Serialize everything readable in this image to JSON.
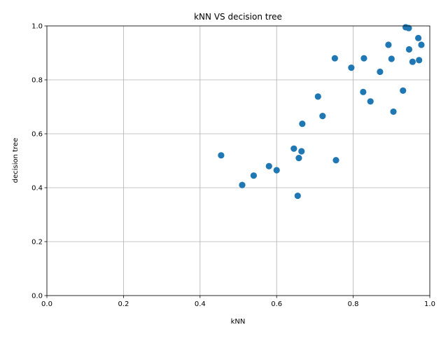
{
  "chart_data": {
    "type": "scatter",
    "title": "kNN VS decision tree",
    "xlabel": "kNN",
    "ylabel": "decision tree",
    "xlim": [
      0,
      1
    ],
    "ylim": [
      0,
      1
    ],
    "xticks": [
      "0.0",
      "0.2",
      "0.4",
      "0.6",
      "0.8",
      "1.0"
    ],
    "yticks": [
      "0.0",
      "0.2",
      "0.4",
      "0.6",
      "0.8",
      "1.0"
    ],
    "grid": true,
    "marker_color": "#1f77b4",
    "points": [
      [
        0.455,
        0.52
      ],
      [
        0.51,
        0.41
      ],
      [
        0.54,
        0.445
      ],
      [
        0.58,
        0.48
      ],
      [
        0.6,
        0.465
      ],
      [
        0.645,
        0.545
      ],
      [
        0.655,
        0.37
      ],
      [
        0.658,
        0.51
      ],
      [
        0.665,
        0.535
      ],
      [
        0.667,
        0.637
      ],
      [
        0.708,
        0.738
      ],
      [
        0.72,
        0.666
      ],
      [
        0.752,
        0.88
      ],
      [
        0.755,
        0.502
      ],
      [
        0.795,
        0.845
      ],
      [
        0.826,
        0.755
      ],
      [
        0.828,
        0.88
      ],
      [
        0.845,
        0.72
      ],
      [
        0.87,
        0.83
      ],
      [
        0.892,
        0.93
      ],
      [
        0.9,
        0.878
      ],
      [
        0.905,
        0.682
      ],
      [
        0.93,
        0.76
      ],
      [
        0.937,
        0.995
      ],
      [
        0.945,
        0.992
      ],
      [
        0.946,
        0.913
      ],
      [
        0.955,
        0.867
      ],
      [
        0.97,
        0.955
      ],
      [
        0.972,
        0.873
      ],
      [
        0.978,
        0.93
      ]
    ]
  }
}
